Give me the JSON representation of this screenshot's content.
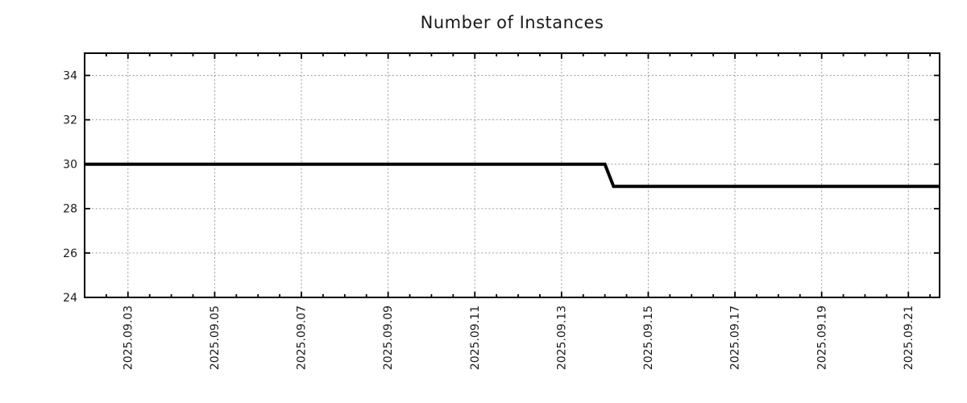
{
  "chart": {
    "title": "Number of Instances"
  },
  "chart_data": {
    "type": "line",
    "title": "Number of Instances",
    "xlabel": "",
    "ylabel": "",
    "legend": {
      "visible": false
    },
    "grid": {
      "visible": true,
      "style": "dotted",
      "color": "#9a9a9a"
    },
    "x_axis": {
      "kind": "time",
      "unit": "day of 2025-09",
      "range_days": [
        2.0,
        21.72
      ],
      "minor_tick_interval_days": 0.5,
      "tick_label_rotation_deg": -90,
      "major_ticks": [
        {
          "day": 3,
          "label": "2025.09.03"
        },
        {
          "day": 5,
          "label": "2025.09.05"
        },
        {
          "day": 7,
          "label": "2025.09.07"
        },
        {
          "day": 9,
          "label": "2025.09.09"
        },
        {
          "day": 11,
          "label": "2025.09.11"
        },
        {
          "day": 13,
          "label": "2025.09.13"
        },
        {
          "day": 15,
          "label": "2025.09.15"
        },
        {
          "day": 17,
          "label": "2025.09.17"
        },
        {
          "day": 19,
          "label": "2025.09.19"
        },
        {
          "day": 21,
          "label": "2025.09.21"
        }
      ]
    },
    "y_axis": {
      "range": [
        24,
        35
      ],
      "major_ticks": [
        24,
        26,
        28,
        30,
        32,
        34
      ]
    },
    "series": [
      {
        "name": "instances",
        "color": "#000000",
        "line_width": 4,
        "points": [
          {
            "day": 2.0,
            "value": 30
          },
          {
            "day": 14.0,
            "value": 30
          },
          {
            "day": 14.2,
            "value": 29
          },
          {
            "day": 21.72,
            "value": 29
          }
        ],
        "summary": "Constant at 30 instances until 2025-09-14, then steps down to 29 for the remainder of the range."
      }
    ]
  },
  "colors": {
    "line": "#000000",
    "grid": "#9a9a9a",
    "border": "#000000",
    "text": "#1a1a1a",
    "background": "#ffffff"
  }
}
